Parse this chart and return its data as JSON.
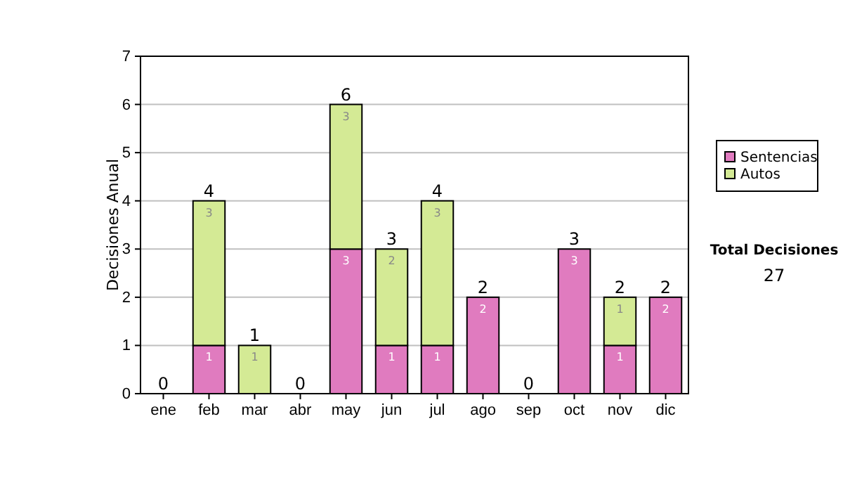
{
  "chart_data": {
    "type": "bar",
    "stacked": true,
    "ylabel": "Decisiones Anual",
    "categories": [
      "ene",
      "feb",
      "mar",
      "abr",
      "may",
      "jun",
      "jul",
      "ago",
      "sep",
      "oct",
      "nov",
      "dic"
    ],
    "series": [
      {
        "name": "Sentencias",
        "color": "#e07bbf",
        "values": [
          0,
          1,
          0,
          0,
          3,
          1,
          1,
          2,
          0,
          3,
          1,
          2
        ],
        "value_labels": [
          null,
          "1",
          null,
          null,
          "3",
          "1",
          "1",
          "2",
          null,
          "3",
          "1",
          "2"
        ]
      },
      {
        "name": "Autos",
        "color": "#d4ea95",
        "values": [
          0,
          3,
          1,
          0,
          3,
          2,
          3,
          0,
          0,
          0,
          1,
          0
        ],
        "value_labels": [
          null,
          "3",
          "1",
          null,
          "3",
          "2",
          "3",
          null,
          null,
          null,
          "1",
          null
        ]
      }
    ],
    "totals": [
      "0",
      "4",
      "1",
      "0",
      "6",
      "3",
      "4",
      "2",
      "0",
      "3",
      "2",
      "2"
    ],
    "ylim": [
      0,
      7
    ],
    "yticks": [
      0,
      1,
      2,
      3,
      4,
      5,
      6,
      7
    ],
    "grid": "y",
    "legend": "right",
    "annotations": [
      "Total Decisiones",
      "27"
    ]
  }
}
